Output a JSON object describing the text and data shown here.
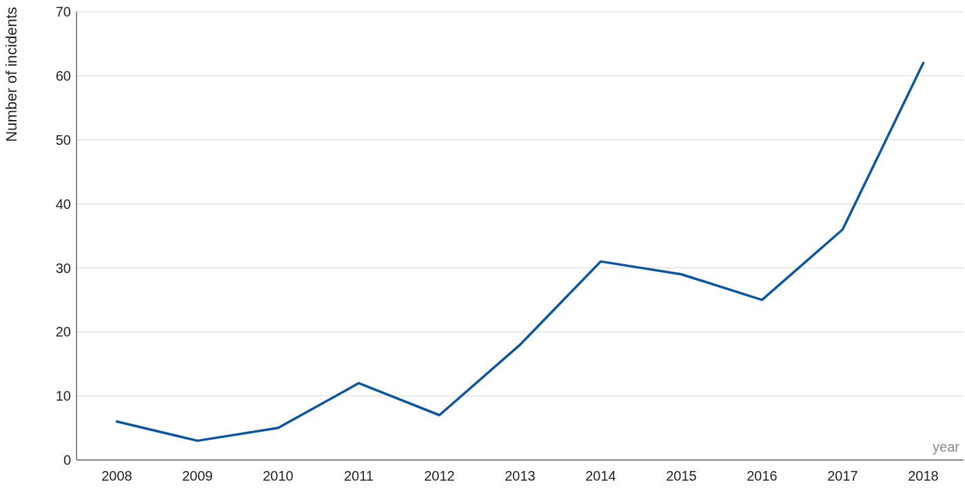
{
  "chart_data": {
    "type": "line",
    "xlabel": "year",
    "ylabel": "Number of incidents",
    "categories": [
      "2008",
      "2009",
      "2010",
      "2011",
      "2012",
      "2013",
      "2014",
      "2015",
      "2016",
      "2017",
      "2018"
    ],
    "series": [
      {
        "color": "#0a55a0",
        "values": [
          6,
          3,
          5,
          12,
          7,
          18,
          31,
          29,
          25,
          36,
          62
        ]
      }
    ],
    "ylim": [
      0,
      70
    ],
    "yticks": [
      0,
      10,
      20,
      30,
      40,
      50,
      60,
      70
    ],
    "grid": "y",
    "legend": false,
    "marker": "none",
    "line_style": "solid"
  }
}
